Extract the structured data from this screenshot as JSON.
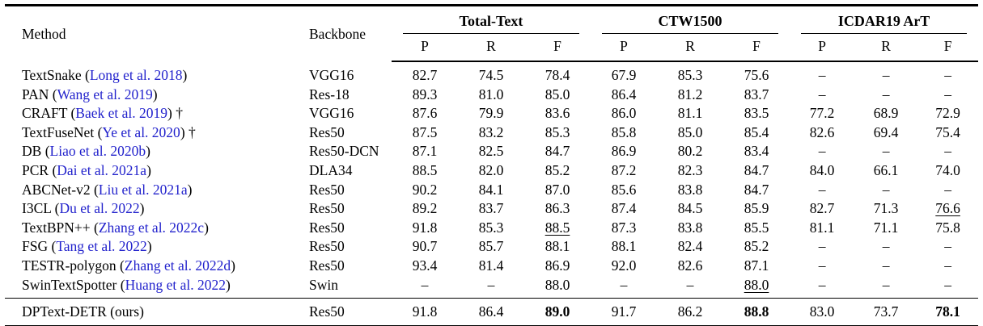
{
  "colors": {
    "citation_link": "#2222cc",
    "text": "#000000",
    "background": "#ffffff"
  },
  "table": {
    "col_method": "Method",
    "col_backbone": "Backbone",
    "groups": [
      {
        "label": "Total-Text"
      },
      {
        "label": "CTW1500"
      },
      {
        "label": "ICDAR19 ArT"
      }
    ],
    "subcols": [
      "P",
      "R",
      "F"
    ],
    "rows": [
      {
        "method": "TextSnake",
        "cite": "Long et al. 2018",
        "dagger": "",
        "backbone": "VGG16",
        "cells": [
          "82.7",
          "74.5",
          "78.4",
          "67.9",
          "85.3",
          "75.6",
          "–",
          "–",
          "–"
        ],
        "underline": [],
        "bold": []
      },
      {
        "method": "PAN",
        "cite": "Wang et al. 2019",
        "dagger": "",
        "backbone": "Res-18",
        "cells": [
          "89.3",
          "81.0",
          "85.0",
          "86.4",
          "81.2",
          "83.7",
          "–",
          "–",
          "–"
        ],
        "underline": [],
        "bold": []
      },
      {
        "method": "CRAFT",
        "cite": "Baek et al. 2019",
        "dagger": "†",
        "backbone": "VGG16",
        "cells": [
          "87.6",
          "79.9",
          "83.6",
          "86.0",
          "81.1",
          "83.5",
          "77.2",
          "68.9",
          "72.9"
        ],
        "underline": [],
        "bold": []
      },
      {
        "method": "TextFuseNet",
        "cite": "Ye et al. 2020",
        "dagger": "†",
        "backbone": "Res50",
        "cells": [
          "87.5",
          "83.2",
          "85.3",
          "85.8",
          "85.0",
          "85.4",
          "82.6",
          "69.4",
          "75.4"
        ],
        "underline": [],
        "bold": []
      },
      {
        "method": "DB",
        "cite": "Liao et al. 2020b",
        "dagger": "",
        "backbone": "Res50-DCN",
        "cells": [
          "87.1",
          "82.5",
          "84.7",
          "86.9",
          "80.2",
          "83.4",
          "–",
          "–",
          "–"
        ],
        "underline": [],
        "bold": []
      },
      {
        "method": "PCR",
        "cite": "Dai et al. 2021a",
        "dagger": "",
        "backbone": "DLA34",
        "cells": [
          "88.5",
          "82.0",
          "85.2",
          "87.2",
          "82.3",
          "84.7",
          "84.0",
          "66.1",
          "74.0"
        ],
        "underline": [],
        "bold": []
      },
      {
        "method": "ABCNet-v2",
        "cite": "Liu et al. 2021a",
        "dagger": "",
        "backbone": "Res50",
        "cells": [
          "90.2",
          "84.1",
          "87.0",
          "85.6",
          "83.8",
          "84.7",
          "–",
          "–",
          "–"
        ],
        "underline": [],
        "bold": []
      },
      {
        "method": "I3CL",
        "cite": "Du et al. 2022",
        "dagger": "",
        "backbone": "Res50",
        "cells": [
          "89.2",
          "83.7",
          "86.3",
          "87.4",
          "84.5",
          "85.9",
          "82.7",
          "71.3",
          "76.6"
        ],
        "underline": [
          8
        ],
        "bold": []
      },
      {
        "method": "TextBPN++",
        "cite": "Zhang et al. 2022c",
        "dagger": "",
        "backbone": "Res50",
        "cells": [
          "91.8",
          "85.3",
          "88.5",
          "87.3",
          "83.8",
          "85.5",
          "81.1",
          "71.1",
          "75.8"
        ],
        "underline": [
          2
        ],
        "bold": []
      },
      {
        "method": "FSG",
        "cite": "Tang et al. 2022",
        "dagger": "",
        "backbone": "Res50",
        "cells": [
          "90.7",
          "85.7",
          "88.1",
          "88.1",
          "82.4",
          "85.2",
          "–",
          "–",
          "–"
        ],
        "underline": [],
        "bold": []
      },
      {
        "method": "TESTR-polygon",
        "cite": "Zhang et al. 2022d",
        "dagger": "",
        "backbone": "Res50",
        "cells": [
          "93.4",
          "81.4",
          "86.9",
          "92.0",
          "82.6",
          "87.1",
          "–",
          "–",
          "–"
        ],
        "underline": [],
        "bold": []
      },
      {
        "method": "SwinTextSpotter",
        "cite": "Huang et al. 2022",
        "dagger": "",
        "backbone": "Swin",
        "cells": [
          "–",
          "–",
          "88.0",
          "–",
          "–",
          "88.0",
          "–",
          "–",
          "–"
        ],
        "underline": [
          5
        ],
        "bold": []
      }
    ],
    "ours_row": {
      "method": "DPText-DETR",
      "cite": "",
      "suffix": "(ours)",
      "dagger": "",
      "backbone": "Res50",
      "cells": [
        "91.8",
        "86.4",
        "89.0",
        "91.7",
        "86.2",
        "88.8",
        "83.0",
        "73.7",
        "78.1"
      ],
      "underline": [],
      "bold": [
        2,
        5,
        8
      ]
    }
  }
}
